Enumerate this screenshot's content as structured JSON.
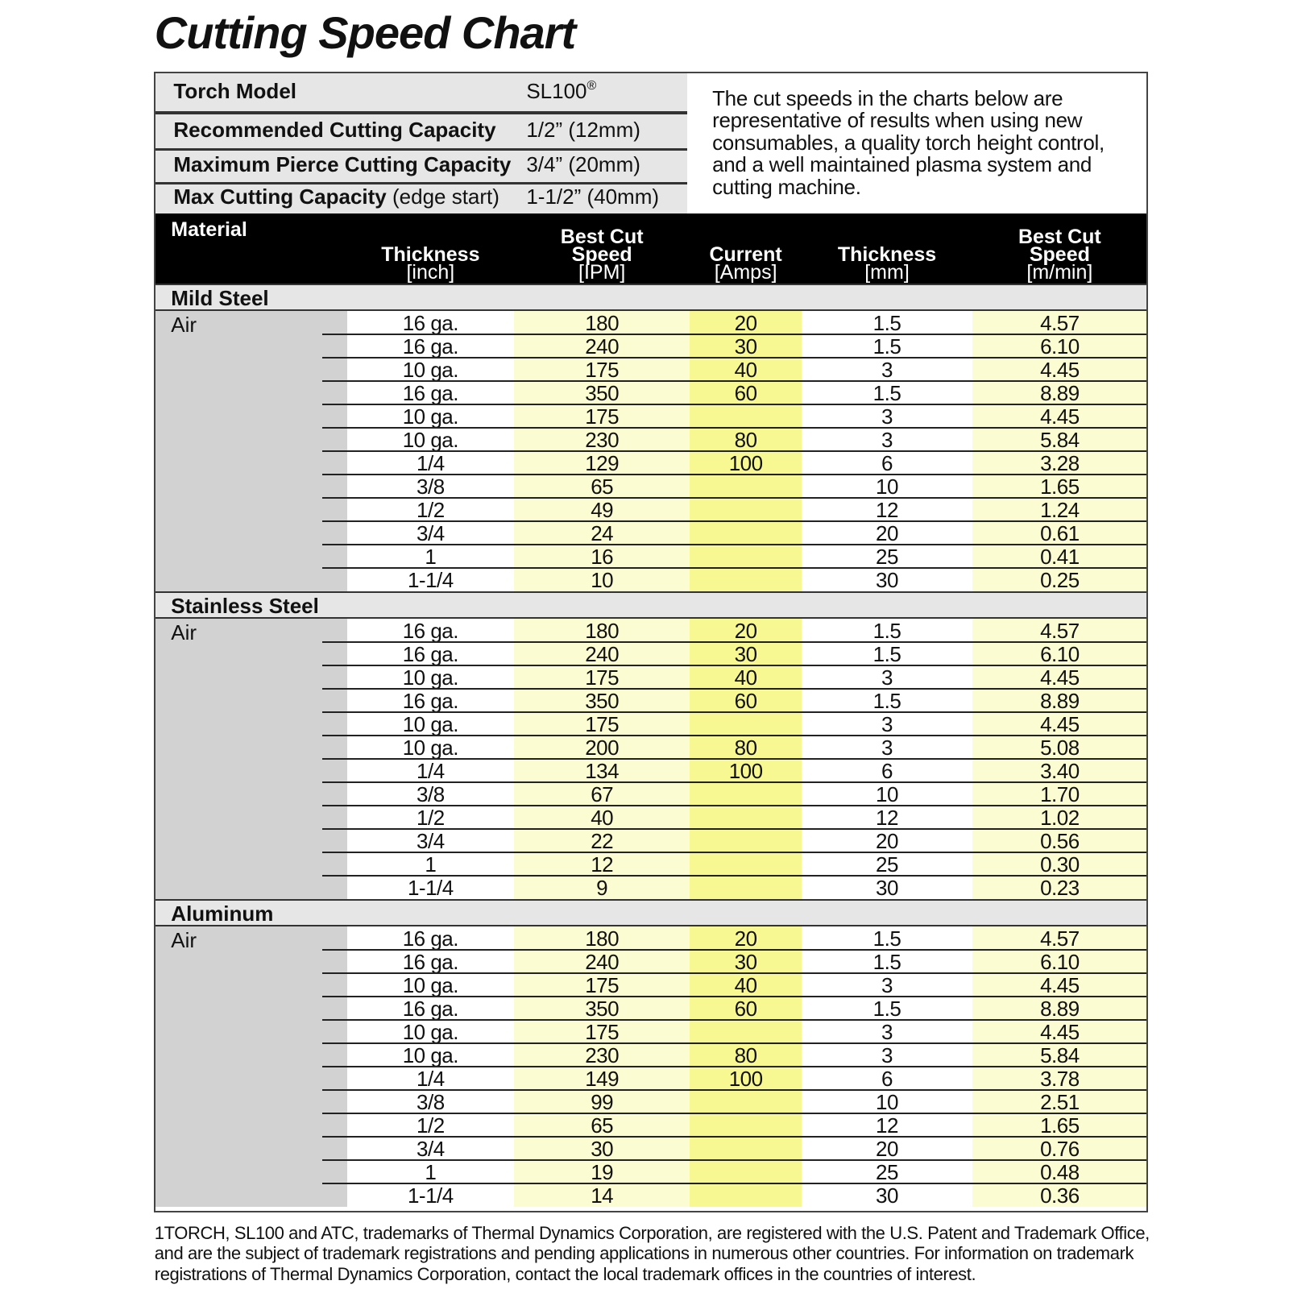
{
  "title": "Cutting Speed Chart",
  "specs": [
    {
      "label": "Torch Model",
      "value": "SL100",
      "mark": "®"
    },
    {
      "label": "Recommended Cutting Capacity",
      "value": "1/2” (12mm)"
    },
    {
      "label": "Maximum Pierce Cutting Capacity",
      "value": "3/4” (20mm)"
    },
    {
      "label": "Max Cutting Capacity",
      "note": "(edge start)",
      "value": "1-1/2” (40mm)"
    }
  ],
  "note": "The cut speeds in the charts below are representative of results when using new consumables, a quality torch height control, and a well maintained plasma system and cutting machine.",
  "table": {
    "headers": [
      {
        "name": "Material"
      },
      {
        "name": "Thickness",
        "unit": "[inch]"
      },
      {
        "name": "Best Cut Speed",
        "unit": "[IPM]"
      },
      {
        "name": "Current",
        "unit": "[Amps]"
      },
      {
        "name": "Thickness",
        "unit": "[mm]"
      },
      {
        "name": "Best Cut Speed",
        "unit": "[m/min]"
      }
    ],
    "sections": [
      {
        "material": "Mild Steel",
        "gas": "Air",
        "rows": [
          [
            "16 ga.",
            "180",
            "20",
            "1.5",
            "4.57"
          ],
          [
            "16 ga.",
            "240",
            "30",
            "1.5",
            "6.10"
          ],
          [
            "10 ga.",
            "175",
            "40",
            "3",
            "4.45"
          ],
          [
            "16 ga.",
            "350",
            "60",
            "1.5",
            "8.89"
          ],
          [
            "10 ga.",
            "175",
            null,
            "3",
            "4.45"
          ],
          [
            "10 ga.",
            "230",
            "80",
            "3",
            "5.84"
          ],
          [
            "1/4",
            "129",
            "100",
            "6",
            "3.28"
          ],
          [
            "3/8",
            "65",
            null,
            "10",
            "1.65"
          ],
          [
            "1/2",
            "49",
            null,
            "12",
            "1.24"
          ],
          [
            "3/4",
            "24",
            null,
            "20",
            "0.61"
          ],
          [
            "1",
            "16",
            null,
            "25",
            "0.41"
          ],
          [
            "1-1/4",
            "10",
            null,
            "30",
            "0.25"
          ]
        ]
      },
      {
        "material": "Stainless Steel",
        "gas": "Air",
        "rows": [
          [
            "16 ga.",
            "180",
            "20",
            "1.5",
            "4.57"
          ],
          [
            "16 ga.",
            "240",
            "30",
            "1.5",
            "6.10"
          ],
          [
            "10 ga.",
            "175",
            "40",
            "3",
            "4.45"
          ],
          [
            "16 ga.",
            "350",
            "60",
            "1.5",
            "8.89"
          ],
          [
            "10 ga.",
            "175",
            null,
            "3",
            "4.45"
          ],
          [
            "10 ga.",
            "200",
            "80",
            "3",
            "5.08"
          ],
          [
            "1/4",
            "134",
            "100",
            "6",
            "3.40"
          ],
          [
            "3/8",
            "67",
            null,
            "10",
            "1.70"
          ],
          [
            "1/2",
            "40",
            null,
            "12",
            "1.02"
          ],
          [
            "3/4",
            "22",
            null,
            "20",
            "0.56"
          ],
          [
            "1",
            "12",
            null,
            "25",
            "0.30"
          ],
          [
            "1-1/4",
            "9",
            null,
            "30",
            "0.23"
          ]
        ]
      },
      {
        "material": "Aluminum",
        "gas": "Air",
        "rows": [
          [
            "16 ga.",
            "180",
            "20",
            "1.5",
            "4.57"
          ],
          [
            "16 ga.",
            "240",
            "30",
            "1.5",
            "6.10"
          ],
          [
            "10 ga.",
            "175",
            "40",
            "3",
            "4.45"
          ],
          [
            "16 ga.",
            "350",
            "60",
            "1.5",
            "8.89"
          ],
          [
            "10 ga.",
            "175",
            null,
            "3",
            "4.45"
          ],
          [
            "10 ga.",
            "230",
            "80",
            "3",
            "5.84"
          ],
          [
            "1/4",
            "149",
            "100",
            "6",
            "3.78"
          ],
          [
            "3/8",
            "99",
            null,
            "10",
            "2.51"
          ],
          [
            "1/2",
            "65",
            null,
            "12",
            "1.65"
          ],
          [
            "3/4",
            "30",
            null,
            "20",
            "0.76"
          ],
          [
            "1",
            "19",
            null,
            "25",
            "0.48"
          ],
          [
            "1-1/4",
            "14",
            null,
            "30",
            "0.36"
          ]
        ]
      }
    ]
  },
  "footer": "1TORCH, SL100 and ATC, trademarks of Thermal Dynamics Corporation, are registered with the U.S. Patent and Trademark Office, and are the subject of trademark registrations and pending applications in numerous other countries.  For information on trademark registrations of Thermal Dynamics Corporation, contact the local trademark offices in the countries of interest."
}
